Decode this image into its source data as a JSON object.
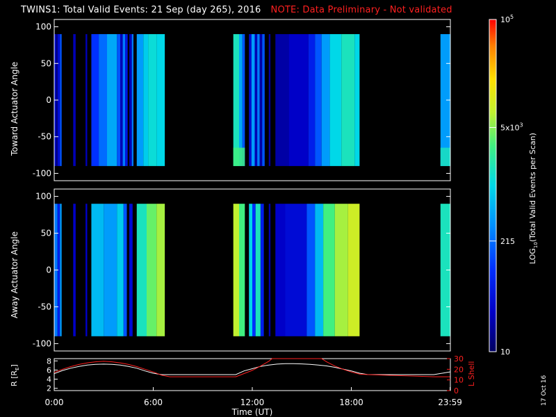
{
  "header": {
    "title": "TWINS1: Total Valid Events: 21 Sep (day 265), 2016",
    "note": "NOTE: Data Preliminary - Not validated"
  },
  "colors": {
    "note": "#ff2020",
    "background": "#000000",
    "l_shell": "#ff2020",
    "r_trace": "#ffffff"
  },
  "chart_data": [
    {
      "type": "heatmap",
      "panel": "toward",
      "ylabel": "Toward Actuator Angle",
      "ylim": [
        -110,
        110
      ],
      "yticks": [
        100,
        50,
        0,
        -50,
        -100
      ],
      "ytick_labels": [
        "100",
        "50",
        "0",
        "-50",
        "-100"
      ],
      "xlim_hours": [
        0,
        24
      ],
      "data_angle_range": [
        -90,
        90
      ],
      "colorscale": "log10",
      "colorbar_range": [
        10,
        100000
      ],
      "blocks": [
        {
          "start": 0.0,
          "end": 0.1,
          "level": 0.15
        },
        {
          "start": 0.1,
          "end": 0.2,
          "level": 0.05
        },
        {
          "start": 0.2,
          "end": 0.35,
          "level": 0.15
        },
        {
          "start": 0.35,
          "end": 0.45,
          "level": 0.3
        },
        {
          "start": 0.45,
          "end": 1.15,
          "level": 0.0,
          "gap": true
        },
        {
          "start": 1.15,
          "end": 1.3,
          "level": 0.1
        },
        {
          "start": 1.3,
          "end": 1.9,
          "level": 0.0,
          "gap": true
        },
        {
          "start": 1.9,
          "end": 2.0,
          "level": 0.1
        },
        {
          "start": 2.0,
          "end": 2.25,
          "level": 0.0,
          "gap": true
        },
        {
          "start": 2.25,
          "end": 2.7,
          "level": 0.25
        },
        {
          "start": 2.7,
          "end": 3.2,
          "level": 0.33
        },
        {
          "start": 3.2,
          "end": 3.8,
          "level": 0.42
        },
        {
          "start": 3.8,
          "end": 4.0,
          "level": 0.3
        },
        {
          "start": 4.0,
          "end": 4.15,
          "level": 0.1
        },
        {
          "start": 4.15,
          "end": 4.3,
          "level": 0.35
        },
        {
          "start": 4.3,
          "end": 4.45,
          "level": 0.18
        },
        {
          "start": 4.45,
          "end": 4.55,
          "level": 0.0,
          "gap": true
        },
        {
          "start": 4.55,
          "end": 4.7,
          "level": 0.1
        },
        {
          "start": 4.7,
          "end": 4.8,
          "level": 0.35
        },
        {
          "start": 4.8,
          "end": 5.0,
          "level": 0.0,
          "gap": true
        },
        {
          "start": 5.0,
          "end": 5.4,
          "level": 0.4
        },
        {
          "start": 5.4,
          "end": 5.7,
          "level": 0.48
        },
        {
          "start": 5.7,
          "end": 6.2,
          "level": 0.52
        },
        {
          "start": 6.2,
          "end": 6.7,
          "level": 0.5
        },
        {
          "start": 10.85,
          "end": 11.2,
          "level": 0.55
        },
        {
          "start": 11.2,
          "end": 11.4,
          "level": 0.42
        },
        {
          "start": 11.4,
          "end": 11.55,
          "level": 0.3
        },
        {
          "start": 11.55,
          "end": 11.8,
          "level": 0.0,
          "gap": true
        },
        {
          "start": 11.8,
          "end": 11.95,
          "level": 0.15
        },
        {
          "start": 11.95,
          "end": 12.15,
          "level": 0.4
        },
        {
          "start": 12.15,
          "end": 12.3,
          "level": 0.1
        },
        {
          "start": 12.3,
          "end": 12.45,
          "level": 0.35
        },
        {
          "start": 12.45,
          "end": 12.6,
          "level": 0.08
        },
        {
          "start": 12.6,
          "end": 12.75,
          "level": 0.3
        },
        {
          "start": 12.75,
          "end": 13.0,
          "level": 0.0,
          "gap": true
        },
        {
          "start": 13.0,
          "end": 13.1,
          "level": 0.08
        },
        {
          "start": 13.1,
          "end": 13.4,
          "level": 0.0,
          "gap": true
        },
        {
          "start": 13.4,
          "end": 14.2,
          "level": 0.08
        },
        {
          "start": 14.2,
          "end": 15.4,
          "level": 0.12
        },
        {
          "start": 15.4,
          "end": 15.8,
          "level": 0.2
        },
        {
          "start": 15.8,
          "end": 16.2,
          "level": 0.3
        },
        {
          "start": 16.2,
          "end": 16.7,
          "level": 0.4
        },
        {
          "start": 16.7,
          "end": 17.4,
          "level": 0.5
        },
        {
          "start": 17.4,
          "end": 18.2,
          "level": 0.55
        },
        {
          "start": 18.2,
          "end": 18.5,
          "level": 0.5
        },
        {
          "start": 23.4,
          "end": 23.98,
          "level": 0.4
        }
      ],
      "low_angle_enhancement": [
        {
          "start": 10.85,
          "end": 11.55,
          "level": 0.62
        },
        {
          "start": 23.4,
          "end": 23.98,
          "level": 0.55
        }
      ]
    },
    {
      "type": "heatmap",
      "panel": "away",
      "ylabel": "Away Actuator Angle",
      "ylim": [
        -110,
        110
      ],
      "yticks": [
        100,
        50,
        0,
        -50,
        -100
      ],
      "ytick_labels": [
        "100",
        "50",
        "0",
        "-50",
        "-100"
      ],
      "xlim_hours": [
        0,
        24
      ],
      "data_angle_range": [
        -90,
        90
      ],
      "colorscale": "log10",
      "colorbar_range": [
        10,
        100000
      ],
      "blocks": [
        {
          "start": 0.0,
          "end": 0.2,
          "level": 0.35
        },
        {
          "start": 0.2,
          "end": 0.35,
          "level": 0.2
        },
        {
          "start": 0.35,
          "end": 0.45,
          "level": 0.4
        },
        {
          "start": 0.45,
          "end": 1.15,
          "level": 0.0,
          "gap": true
        },
        {
          "start": 1.15,
          "end": 1.3,
          "level": 0.12
        },
        {
          "start": 1.3,
          "end": 1.9,
          "level": 0.0,
          "gap": true
        },
        {
          "start": 1.9,
          "end": 2.0,
          "level": 0.12
        },
        {
          "start": 2.0,
          "end": 2.25,
          "level": 0.0,
          "gap": true
        },
        {
          "start": 2.25,
          "end": 3.0,
          "level": 0.45
        },
        {
          "start": 3.0,
          "end": 3.8,
          "level": 0.4
        },
        {
          "start": 3.8,
          "end": 4.2,
          "level": 0.48
        },
        {
          "start": 4.2,
          "end": 4.4,
          "level": 0.3
        },
        {
          "start": 4.4,
          "end": 4.55,
          "level": 0.0,
          "gap": true
        },
        {
          "start": 4.55,
          "end": 4.75,
          "level": 0.15
        },
        {
          "start": 4.75,
          "end": 5.0,
          "level": 0.0,
          "gap": true
        },
        {
          "start": 5.0,
          "end": 5.6,
          "level": 0.55
        },
        {
          "start": 5.6,
          "end": 6.2,
          "level": 0.65
        },
        {
          "start": 6.2,
          "end": 6.7,
          "level": 0.7
        },
        {
          "start": 10.85,
          "end": 11.2,
          "level": 0.72
        },
        {
          "start": 11.2,
          "end": 11.55,
          "level": 0.62
        },
        {
          "start": 11.55,
          "end": 11.8,
          "level": 0.0,
          "gap": true
        },
        {
          "start": 11.8,
          "end": 12.0,
          "level": 0.5
        },
        {
          "start": 12.0,
          "end": 12.2,
          "level": 0.25
        },
        {
          "start": 12.2,
          "end": 12.5,
          "level": 0.55
        },
        {
          "start": 12.5,
          "end": 12.7,
          "level": 0.2
        },
        {
          "start": 12.7,
          "end": 13.0,
          "level": 0.0,
          "gap": true
        },
        {
          "start": 13.0,
          "end": 13.1,
          "level": 0.1
        },
        {
          "start": 13.1,
          "end": 13.4,
          "level": 0.0,
          "gap": true
        },
        {
          "start": 13.4,
          "end": 14.0,
          "level": 0.12
        },
        {
          "start": 14.0,
          "end": 15.3,
          "level": 0.15
        },
        {
          "start": 15.3,
          "end": 15.8,
          "level": 0.3
        },
        {
          "start": 15.8,
          "end": 16.3,
          "level": 0.45
        },
        {
          "start": 16.3,
          "end": 17.0,
          "level": 0.62
        },
        {
          "start": 17.0,
          "end": 17.8,
          "level": 0.7
        },
        {
          "start": 17.8,
          "end": 18.5,
          "level": 0.74
        },
        {
          "start": 23.4,
          "end": 23.98,
          "level": 0.55
        }
      ]
    },
    {
      "type": "line",
      "panel": "ephemeris",
      "ylabel": "R [RE]",
      "ylabel_text": "R [R",
      "ylabel_sub": "E",
      "ylabel_close": "]",
      "y2label": "L Shell",
      "ylim": [
        1.5,
        8.5
      ],
      "yticks": [
        2,
        4,
        6,
        8
      ],
      "ytick_labels": [
        "2",
        "4",
        "6",
        "8"
      ],
      "y2lim": [
        0,
        30
      ],
      "y2ticks": [
        0,
        10,
        20,
        30
      ],
      "y2tick_labels": [
        "0",
        "10",
        "20",
        "30"
      ],
      "xlim_hours": [
        0,
        24
      ],
      "xticks": [
        0,
        6,
        12,
        18,
        23.983
      ],
      "xtick_labels": [
        "0:00",
        "6:00",
        "12:00",
        "18:00",
        "23:59"
      ],
      "xlabel": "Time (UT)",
      "series": [
        {
          "name": "R",
          "color": "#ffffff",
          "x": [
            0,
            0.5,
            1,
            1.5,
            2,
            2.5,
            3,
            3.5,
            4,
            4.5,
            5,
            5.5,
            6,
            6.5,
            7,
            8,
            9,
            10,
            11,
            11.5,
            12,
            12.5,
            13,
            13.5,
            14,
            14.5,
            15,
            15.5,
            16,
            16.5,
            17,
            17.5,
            18,
            18.5,
            19,
            20,
            21,
            22,
            23,
            23.98
          ],
          "y": [
            5.2,
            5.9,
            6.4,
            6.8,
            7.1,
            7.25,
            7.3,
            7.25,
            7.1,
            6.8,
            6.4,
            5.8,
            5.3,
            5.0,
            5.0,
            5.0,
            5.0,
            5.0,
            5.0,
            5.8,
            6.3,
            6.8,
            7.1,
            7.3,
            7.4,
            7.4,
            7.35,
            7.25,
            7.1,
            6.9,
            6.6,
            6.2,
            5.8,
            5.3,
            5.0,
            5.0,
            5.0,
            5.0,
            5.0,
            5.6
          ]
        },
        {
          "name": "L Shell",
          "color": "#ff2020",
          "x": [
            0,
            0.5,
            1,
            1.5,
            2,
            2.5,
            3,
            3.5,
            4,
            4.5,
            5,
            5.5,
            6,
            6.5,
            7,
            8,
            9,
            10,
            11,
            11.5,
            12,
            12.5,
            13,
            13.2,
            16.2,
            16.5,
            17,
            17.5,
            18,
            18.5,
            19,
            20,
            21,
            22,
            23,
            23.98
          ],
          "y": [
            17,
            20,
            22.5,
            24.5,
            26,
            27,
            27.5,
            27,
            26,
            24.5,
            22.5,
            20,
            17.5,
            14.5,
            13,
            13,
            13,
            13,
            13,
            16,
            19,
            23,
            27.5,
            30,
            30,
            27,
            23,
            20,
            17.5,
            15.5,
            15,
            14.5,
            14,
            13.5,
            13,
            13
          ]
        }
      ]
    },
    {
      "type": "colorbar",
      "label": "LOG10(Total Valid Events per Scan)",
      "label_prefix": "LOG",
      "label_sub": "10",
      "label_suffix": "(Total Valid Events per Scan)",
      "scale": "log",
      "range": [
        10,
        100000
      ],
      "ticks": [
        {
          "value": 10,
          "label": "10"
        },
        {
          "value": 215,
          "label": "215"
        },
        {
          "value": 5000,
          "label": "5x10",
          "exp": "3"
        },
        {
          "value": 100000,
          "label": "10",
          "exp": "5"
        }
      ]
    }
  ],
  "footer": {
    "datestamp": "17 Oct 16"
  }
}
